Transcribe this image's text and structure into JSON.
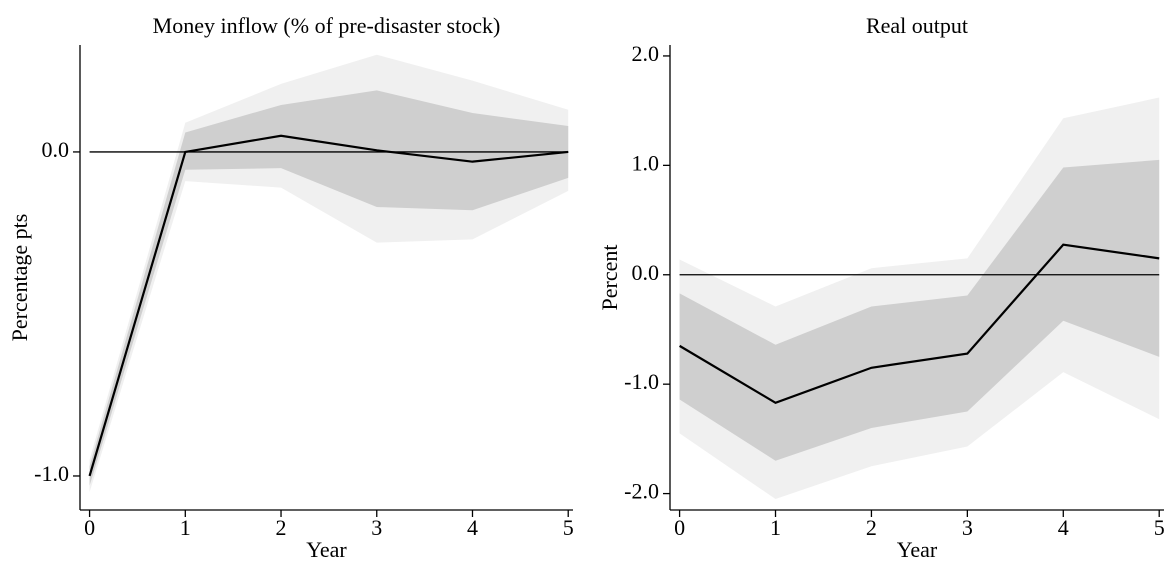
{
  "chart_data": [
    {
      "type": "line",
      "title": "Money inflow (% of pre-disaster stock)",
      "xlabel": "Year",
      "ylabel": "Percentage pts",
      "x": [
        0,
        1,
        2,
        3,
        4,
        5
      ],
      "series": [
        {
          "color": "#000000",
          "values": [
            -1.0,
            0.0,
            0.05,
            0.005,
            -0.03,
            0.0
          ]
        }
      ],
      "bands": [
        {
          "color": "#f0f0f0",
          "lower": [
            -1.05,
            -0.09,
            -0.11,
            -0.28,
            -0.27,
            -0.12
          ],
          "upper": [
            -0.95,
            0.09,
            0.21,
            0.3,
            0.22,
            0.13
          ]
        },
        {
          "color": "#cfcfcf",
          "lower": [
            -1.03,
            -0.055,
            -0.05,
            -0.17,
            -0.18,
            -0.08
          ],
          "upper": [
            -0.97,
            0.06,
            0.145,
            0.19,
            0.12,
            0.08
          ]
        }
      ],
      "hline": 0,
      "xlim": [
        -0.1,
        5.05
      ],
      "xticks": [
        0,
        1,
        2,
        3,
        4,
        5
      ],
      "ylim": [
        -1.105,
        0.33
      ],
      "yticks": [
        {
          "value": 0,
          "label": "0.0"
        },
        {
          "value": -1,
          "label": "-1.0"
        }
      ]
    },
    {
      "type": "line",
      "title": "Real output",
      "xlabel": "Year",
      "ylabel": "Percent",
      "x": [
        0,
        1,
        2,
        3,
        4,
        5
      ],
      "series": [
        {
          "color": "#000000",
          "values": [
            -0.65,
            -1.17,
            -0.85,
            -0.72,
            0.275,
            0.15
          ]
        }
      ],
      "bands": [
        {
          "color": "#f0f0f0",
          "lower": [
            -1.45,
            -2.05,
            -1.75,
            -1.57,
            -0.89,
            -1.32
          ],
          "upper": [
            0.14,
            -0.29,
            0.06,
            0.15,
            1.43,
            1.62
          ]
        },
        {
          "color": "#cfcfcf",
          "lower": [
            -1.14,
            -1.7,
            -1.4,
            -1.25,
            -0.42,
            -0.75
          ],
          "upper": [
            -0.17,
            -0.64,
            -0.29,
            -0.19,
            0.98,
            1.05
          ]
        }
      ],
      "hline": 0,
      "xlim": [
        -0.1,
        5.05
      ],
      "xticks": [
        0,
        1,
        2,
        3,
        4,
        5
      ],
      "ylim": [
        -2.15,
        2.1
      ],
      "yticks": [
        {
          "value": 2,
          "label": "2.0"
        },
        {
          "value": 1,
          "label": "1.0"
        },
        {
          "value": 0,
          "label": "0.0"
        },
        {
          "value": -1,
          "label": "-1.0"
        },
        {
          "value": -2,
          "label": "-2.0"
        }
      ]
    }
  ]
}
